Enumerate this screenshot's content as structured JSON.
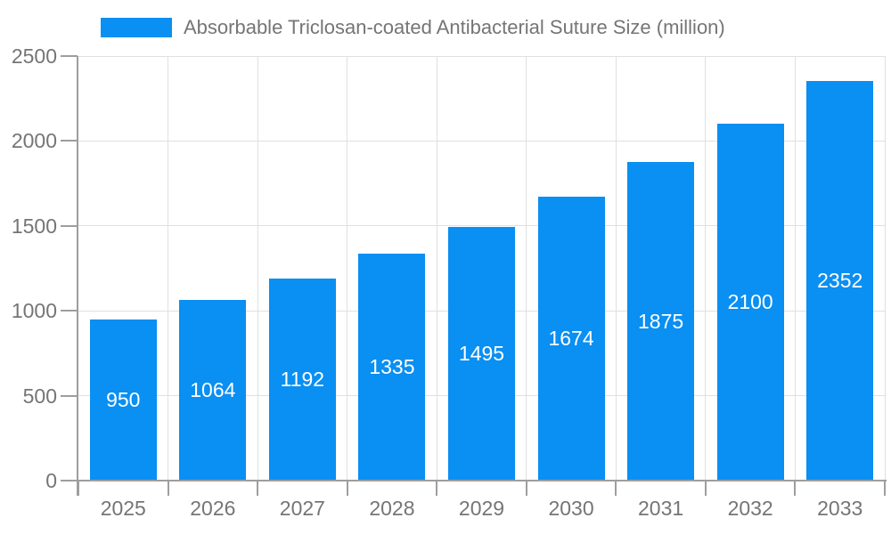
{
  "chart_data": {
    "type": "bar",
    "title": "Absorbable Triclosan-coated Antibacterial Suture Size (million)",
    "categories": [
      "2025",
      "2026",
      "2027",
      "2028",
      "2029",
      "2030",
      "2031",
      "2032",
      "2033"
    ],
    "values": [
      950,
      1064,
      1192,
      1335,
      1495,
      1674,
      1875,
      2100,
      2352
    ],
    "xlabel": "",
    "ylabel": "",
    "ylim": [
      0,
      2500
    ],
    "yticks": [
      0,
      500,
      1000,
      1500,
      2000,
      2500
    ],
    "grid": true,
    "legend_position": "top-left",
    "bar_value_labels": "inside-center"
  },
  "colors": {
    "bar": "#0a8ff2",
    "bar_label": "#ffffff",
    "grid": "#e0e0e0",
    "axis": "#9e9e9e",
    "tick_label": "#757575",
    "background": "#ffffff"
  }
}
